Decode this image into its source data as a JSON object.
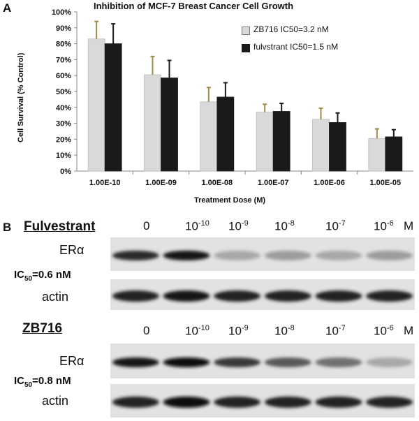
{
  "panel_a_label": "A",
  "panel_b_label": "B",
  "chart_data": {
    "type": "bar",
    "title": "Inhibition of MCF-7 Breast Cancer Cell Growth",
    "xlabel": "Treatment Dose (M)",
    "ylabel": "Cell Survival (% Control)",
    "categories": [
      "1.00E-10",
      "1.00E-09",
      "1.00E-08",
      "1.00E-07",
      "1.00E-06",
      "1.00E-05"
    ],
    "ylim": [
      0,
      100
    ],
    "yticks": [
      "0%",
      "10%",
      "20%",
      "30%",
      "40%",
      "50%",
      "60%",
      "70%",
      "80%",
      "90%",
      "100%"
    ],
    "legend_position": "top-right",
    "grid": false,
    "series": [
      {
        "name": "ZB716 IC50=3.2 nM",
        "color": "#d9d9d9",
        "error_color": "#a08c4a",
        "values": [
          83,
          60.5,
          43.5,
          37,
          32.5,
          20.5
        ],
        "errors": [
          11,
          11.5,
          9,
          5,
          7,
          6
        ]
      },
      {
        "name": "fulvstrant IC50=1.5 nM",
        "color": "#1a1a1a",
        "error_color": "#1a1a1a",
        "values": [
          80,
          58.5,
          46.5,
          37.5,
          30.5,
          21.5
        ],
        "errors": [
          12.5,
          11,
          9,
          5,
          6,
          4.5
        ]
      }
    ]
  },
  "blot1": {
    "heading": "Fulvestrant",
    "doses": [
      {
        "base": "0",
        "exp": ""
      },
      {
        "base": "10",
        "exp": "-10"
      },
      {
        "base": "10",
        "exp": "-9"
      },
      {
        "base": "10",
        "exp": "-8"
      },
      {
        "base": "10",
        "exp": "-7"
      },
      {
        "base": "10",
        "exp": "-6"
      }
    ],
    "unit": "M",
    "er_label": "ERα",
    "actin_label": "actin",
    "ic50_prefix": "IC",
    "ic50_sub": "50",
    "ic50_value": "=0.6 nM",
    "er_band_intensity": [
      0.85,
      0.95,
      0.3,
      0.35,
      0.3,
      0.35
    ],
    "actin_band_intensity": [
      0.9,
      0.95,
      0.9,
      0.9,
      0.9,
      0.9
    ]
  },
  "blot2": {
    "heading": "ZB716",
    "doses": [
      {
        "base": "0",
        "exp": ""
      },
      {
        "base": "10",
        "exp": "-10"
      },
      {
        "base": "10",
        "exp": "-9"
      },
      {
        "base": "10",
        "exp": "-8"
      },
      {
        "base": "10",
        "exp": "-7"
      },
      {
        "base": "10",
        "exp": "-6"
      }
    ],
    "unit": "M",
    "er_label": "ERα",
    "actin_label": "actin",
    "ic50_prefix": "IC",
    "ic50_sub": "50",
    "ic50_value": "=0.8 nM",
    "er_band_intensity": [
      0.95,
      1.0,
      0.8,
      0.65,
      0.55,
      0.3
    ],
    "actin_band_intensity": [
      0.9,
      1.0,
      0.9,
      0.9,
      0.9,
      0.9
    ]
  }
}
